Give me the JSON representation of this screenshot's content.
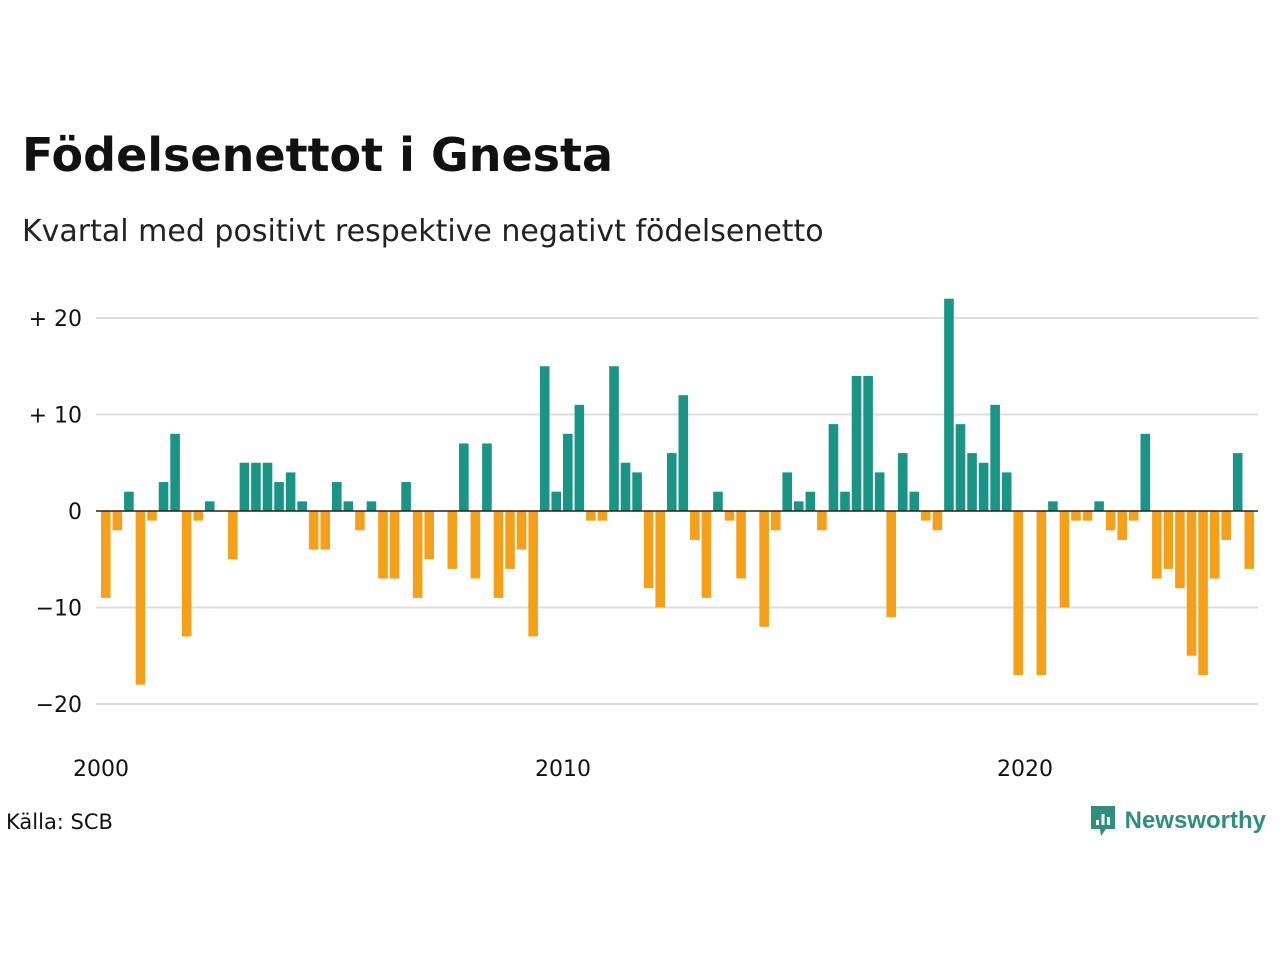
{
  "title": "Födelsenettot i Gnesta",
  "subtitle": "Kvartal med positivt respektive negativt födelsenetto",
  "source": "Källa: SCB",
  "brand": {
    "name": "Newsworthy",
    "icon": "newsworthy-logo-icon"
  },
  "colors": {
    "positive": "#1a9485",
    "negative": "#f5a01a",
    "grid": "#dddddd",
    "zero_line": "#222222"
  },
  "chart_data": {
    "type": "bar",
    "x_start": 2000,
    "period": "quarter",
    "x_ticks": [
      "2000",
      "2010",
      "2020"
    ],
    "y_ticks": [
      {
        "value": 20,
        "label": "+ 20"
      },
      {
        "value": 10,
        "label": "+ 10"
      },
      {
        "value": 0,
        "label": "0"
      },
      {
        "value": -10,
        "label": "−10"
      },
      {
        "value": -20,
        "label": "−20"
      }
    ],
    "ylim": [
      -22,
      24
    ],
    "grid": true,
    "values": [
      -9,
      -2,
      2,
      -18,
      -1,
      3,
      8,
      -13,
      -1,
      1,
      0,
      -5,
      5,
      5,
      5,
      3,
      4,
      1,
      -4,
      -4,
      3,
      1,
      -2,
      1,
      -7,
      -7,
      3,
      -9,
      -5,
      0,
      -6,
      7,
      -7,
      7,
      -9,
      -6,
      -4,
      -13,
      15,
      2,
      8,
      11,
      -1,
      -1,
      15,
      5,
      4,
      -8,
      -10,
      6,
      12,
      -3,
      -9,
      2,
      -1,
      -7,
      0,
      -12,
      -2,
      4,
      1,
      2,
      -2,
      9,
      2,
      14,
      14,
      4,
      -11,
      6,
      2,
      -1,
      -2,
      22,
      9,
      6,
      5,
      11,
      4,
      -17,
      0,
      -17,
      1,
      -10,
      -1,
      -1,
      1,
      -2,
      -3,
      -1,
      8,
      -7,
      -6,
      -8,
      -15,
      -17,
      -7,
      -3,
      6,
      -6
    ]
  }
}
